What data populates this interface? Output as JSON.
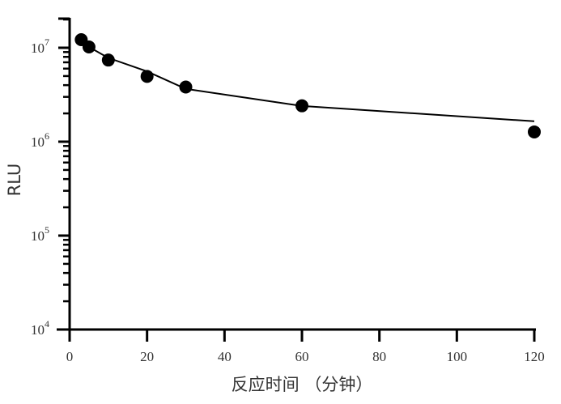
{
  "chart_data": {
    "type": "line",
    "title": "",
    "xlabel": "反应时间 （分钟）",
    "ylabel": "RLU",
    "xlim": [
      0,
      120
    ],
    "ylim": [
      10000,
      20000000
    ],
    "yscale": "log",
    "grid": false,
    "legend": null,
    "x_ticks": [
      "0",
      "20",
      "40",
      "60",
      "80",
      "100",
      "120"
    ],
    "y_ticks": [
      {
        "base": "10",
        "exp": "4"
      },
      {
        "base": "10",
        "exp": "5"
      },
      {
        "base": "10",
        "exp": "6"
      },
      {
        "base": "10",
        "exp": "7"
      }
    ],
    "series": [
      {
        "name": "RLU",
        "x": [
          3,
          5,
          10,
          20,
          30,
          60,
          120
        ],
        "values": [
          12200000,
          10200000,
          7400000,
          4960000,
          3820000,
          2410000,
          1270000
        ],
        "marker": "circle",
        "color": "#000000"
      }
    ],
    "fit_line": {
      "x": [
        5,
        10,
        20,
        30,
        60,
        120
      ],
      "values": [
        10200000,
        7800000,
        5600000,
        3650000,
        2400000,
        1650000
      ]
    }
  }
}
